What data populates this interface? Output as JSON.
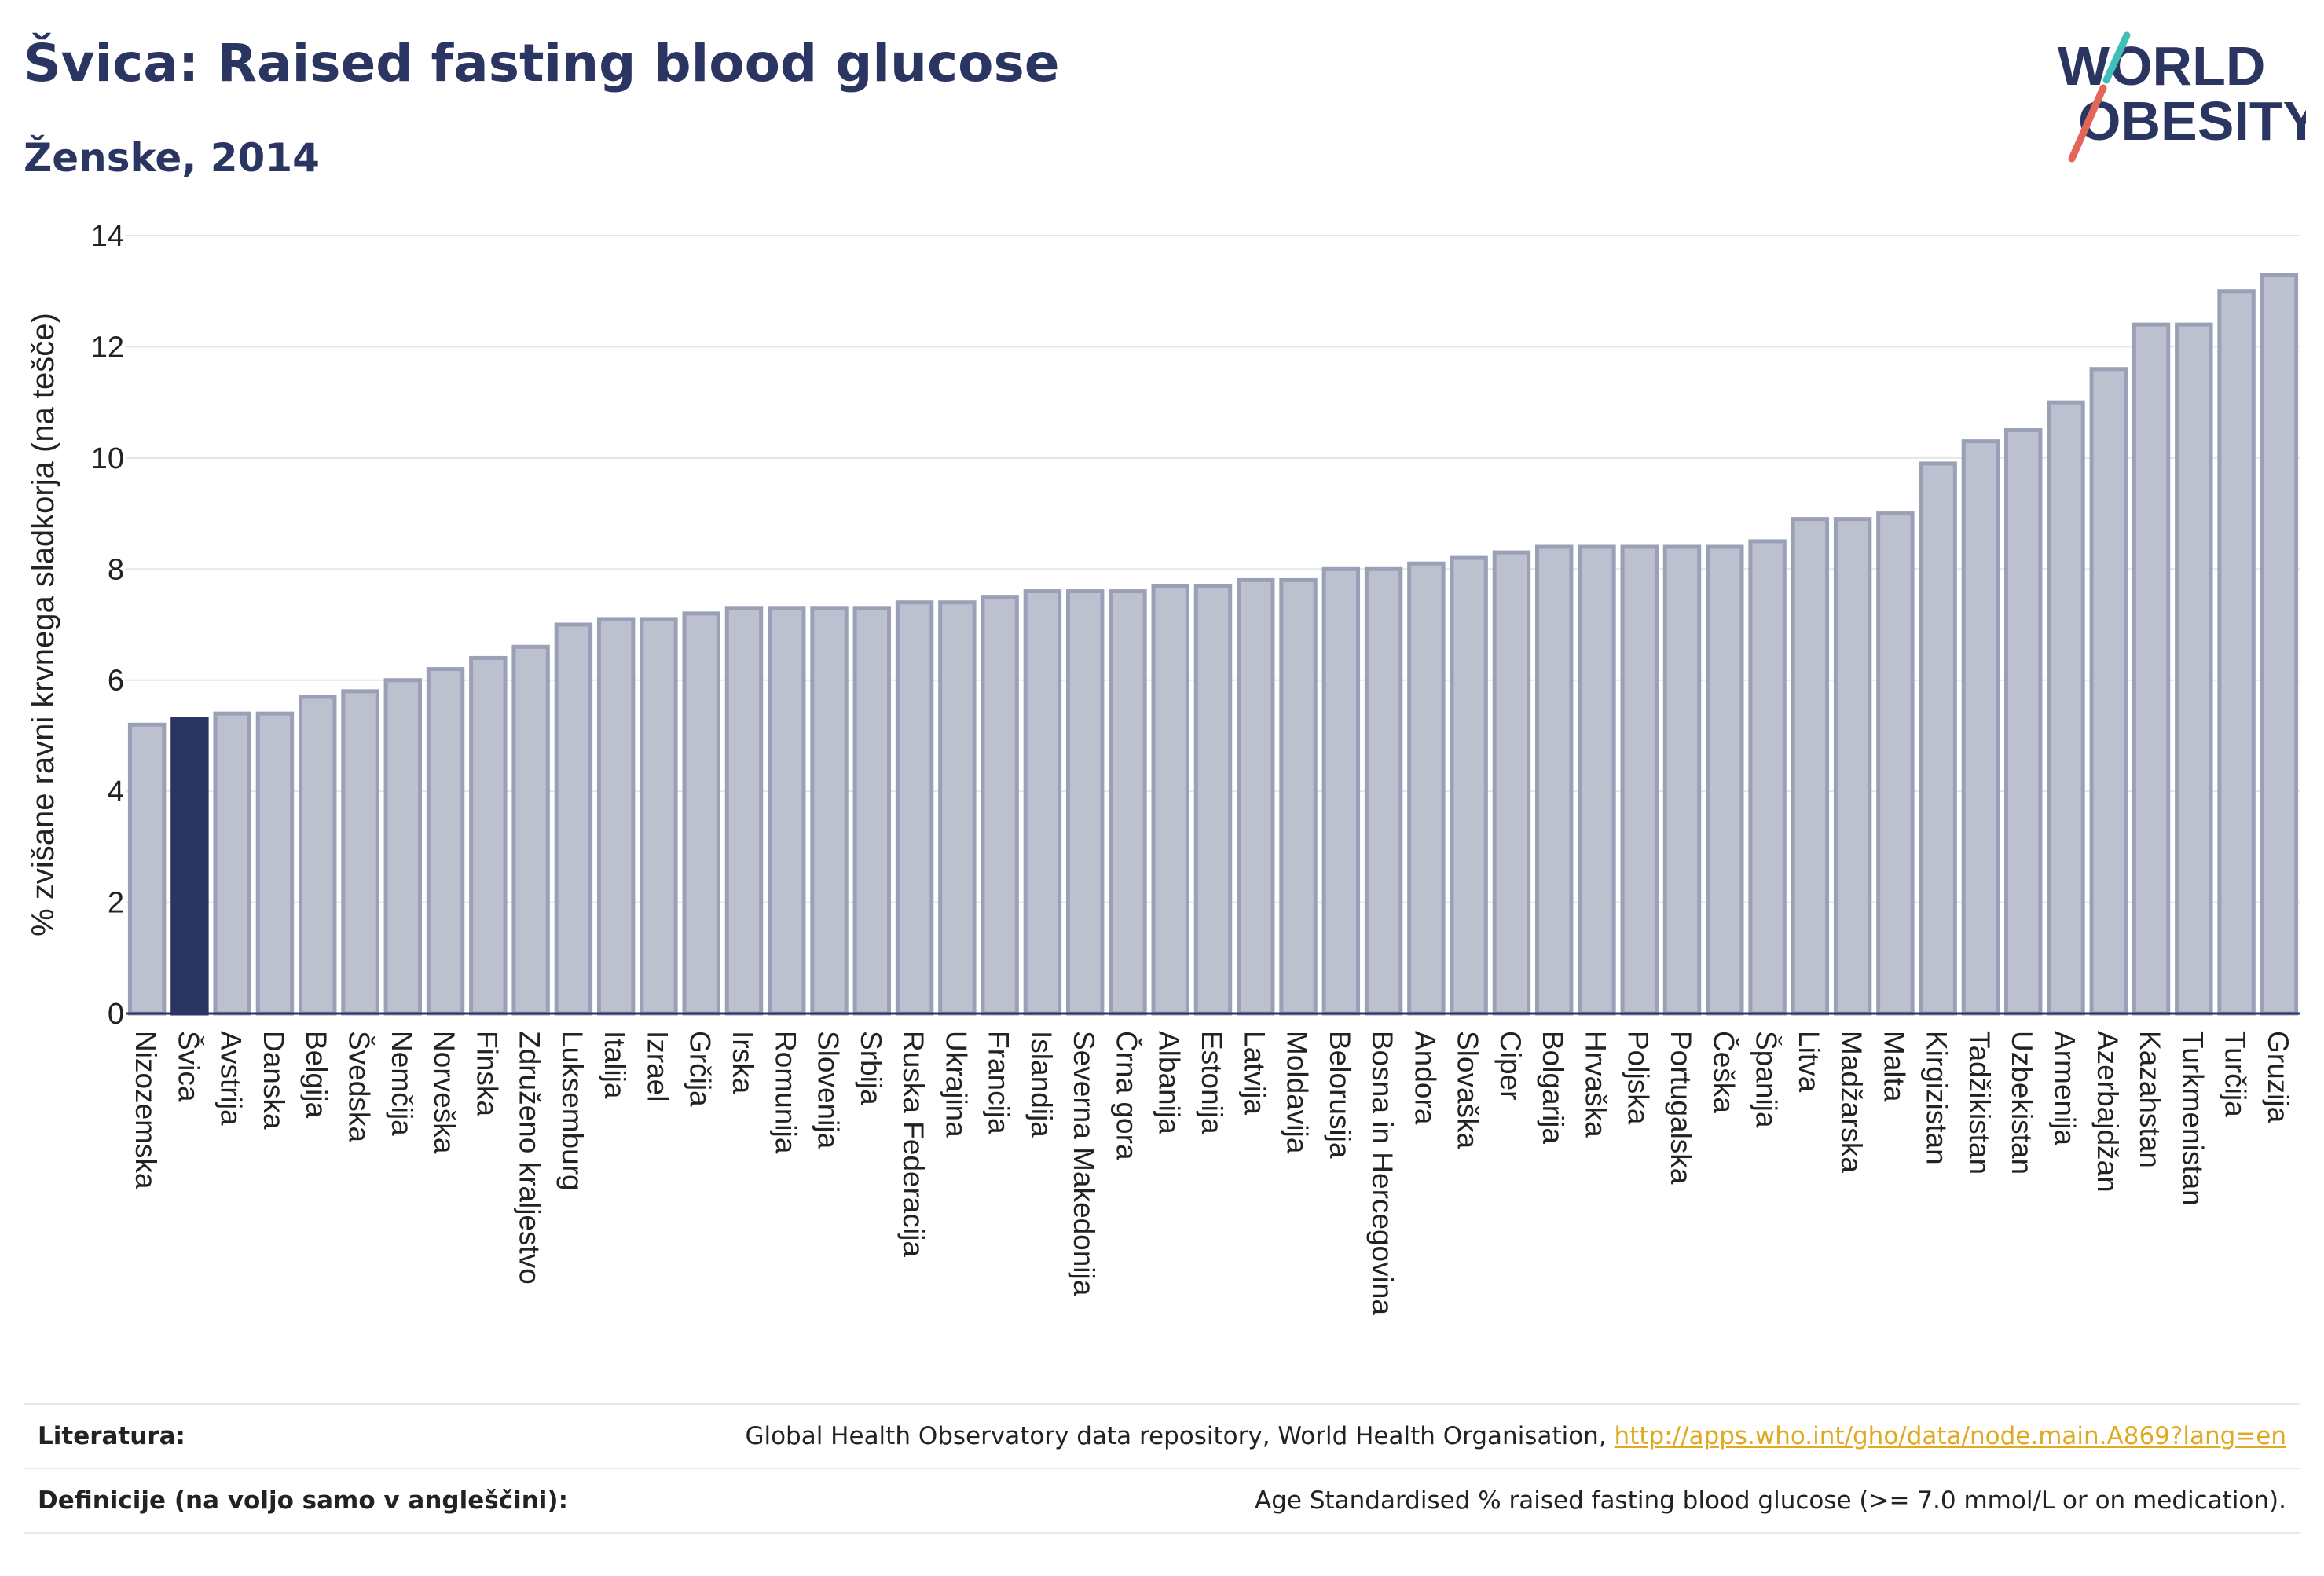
{
  "header": {
    "title": "Švica: Raised fasting blood glucose",
    "subtitle": "Ženske, 2014"
  },
  "logo": {
    "line1": "WORLD",
    "line2": "OBESITY",
    "colors": {
      "text": "#2b3561",
      "slash_red": "#e2665a",
      "slash_teal": "#3fbfb8"
    }
  },
  "colors": {
    "bar_fill": "#bcc0cf",
    "bar_stroke": "#9aa0b6",
    "highlight": "#2b3561",
    "grid": "#e4e6ec",
    "axis": "#2b3561"
  },
  "chart_data": {
    "type": "bar",
    "title": "Švica: Raised fasting blood glucose",
    "subtitle": "Ženske, 2014",
    "xlabel": "",
    "ylabel": "% zvišane ravni krvnega sladkorja (na tešče)",
    "ylim": [
      0,
      14
    ],
    "yticks": [
      0,
      2,
      4,
      6,
      8,
      10,
      12,
      14
    ],
    "grid": true,
    "highlight_category": "Švica",
    "categories": [
      "Nizozemska",
      "Švica",
      "Avstrija",
      "Danska",
      "Belgija",
      "Švedska",
      "Nemčija",
      "Norveška",
      "Finska",
      "Združeno kraljestvo",
      "Luksemburg",
      "Italija",
      "Izrael",
      "Grčija",
      "Irska",
      "Romunija",
      "Slovenija",
      "Srbija",
      "Ruska Federacija",
      "Ukrajina",
      "Francija",
      "Islandija",
      "Severna Makedonija",
      "Črna gora",
      "Albanija",
      "Estonija",
      "Latvija",
      "Moldavija",
      "Belorusija",
      "Bosna in Hercegovina",
      "Andora",
      "Slovaška",
      "Ciper",
      "Bolgarija",
      "Hrvaška",
      "Poljska",
      "Portugalska",
      "Češka",
      "Španija",
      "Litva",
      "Madžarska",
      "Malta",
      "Kirgizistan",
      "Tadžikistan",
      "Uzbekistan",
      "Armenija",
      "Azerbajdžan",
      "Kazahstan",
      "Turkmenistan",
      "Turčija",
      "Gruzija"
    ],
    "values": [
      5.2,
      5.3,
      5.4,
      5.4,
      5.7,
      5.8,
      6.0,
      6.2,
      6.4,
      6.6,
      7.0,
      7.1,
      7.1,
      7.2,
      7.3,
      7.3,
      7.3,
      7.3,
      7.4,
      7.4,
      7.5,
      7.6,
      7.6,
      7.6,
      7.7,
      7.7,
      7.8,
      7.8,
      8.0,
      8.0,
      8.1,
      8.2,
      8.3,
      8.4,
      8.4,
      8.4,
      8.4,
      8.4,
      8.5,
      8.9,
      8.9,
      9.0,
      9.9,
      10.3,
      10.5,
      11.0,
      11.6,
      12.4,
      12.4,
      13.0,
      13.3
    ]
  },
  "footer": {
    "references_label": "Literatura:",
    "references_text": "Global Health Observatory data repository, World Health Organisation, ",
    "references_link": "http://apps.who.int/gho/data/node.main.A869?lang=en",
    "definitions_label": "Definicije (na voljo samo v angleščini):",
    "definitions_text": "Age Standardised % raised fasting blood glucose (>= 7.0 mmol/L or on medication)."
  }
}
